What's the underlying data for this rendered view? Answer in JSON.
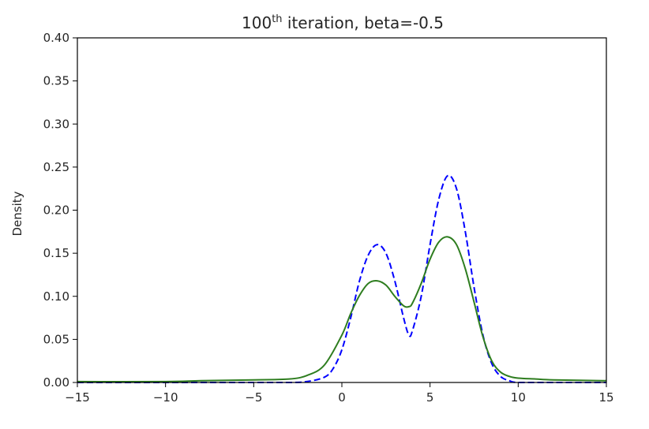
{
  "chart_data": {
    "type": "line",
    "title_main": "100",
    "title_sup": "th",
    "title_rest": " iteration, beta=-0.5",
    "xlabel": "",
    "ylabel": "Density",
    "xlim": [
      -15,
      15
    ],
    "ylim": [
      0,
      0.4
    ],
    "x_ticks": [
      -15,
      -10,
      -5,
      0,
      5,
      10,
      15
    ],
    "x_tick_labels": [
      "−15",
      "−10",
      "−5",
      "0",
      "5",
      "10",
      "15"
    ],
    "y_ticks": [
      0,
      0.05,
      0.1,
      0.15,
      0.2,
      0.25,
      0.3,
      0.35,
      0.4
    ],
    "y_tick_labels": [
      "0.00",
      "0.05",
      "0.10",
      "0.15",
      "0.20",
      "0.25",
      "0.30",
      "0.35",
      "0.40"
    ],
    "grid": false,
    "series": [
      {
        "style": "dashed",
        "color": "#0000ff",
        "x": [
          -15,
          -10,
          -5,
          -3,
          -2,
          -1,
          -0.5,
          0,
          0.5,
          1,
          1.5,
          2,
          2.5,
          3,
          3.5,
          3.8,
          4,
          4.5,
          5,
          5.5,
          6,
          6.5,
          7,
          7.5,
          8,
          8.5,
          9,
          9.5,
          10,
          12,
          15
        ],
        "y": [
          0.0,
          0.0,
          0.0,
          0.0,
          0.001,
          0.006,
          0.016,
          0.038,
          0.075,
          0.118,
          0.148,
          0.16,
          0.15,
          0.118,
          0.075,
          0.055,
          0.06,
          0.1,
          0.16,
          0.213,
          0.24,
          0.225,
          0.175,
          0.11,
          0.055,
          0.022,
          0.007,
          0.002,
          0.0,
          0.0,
          0.0
        ]
      },
      {
        "style": "solid",
        "color": "#2e7d1f",
        "x": [
          -15,
          -10,
          -8,
          -5,
          -3,
          -2,
          -1,
          0,
          0.5,
          1,
          1.5,
          2,
          2.5,
          3,
          3.5,
          3.8,
          4,
          4.5,
          5,
          5.5,
          6,
          6.5,
          7,
          7.5,
          8,
          8.5,
          9,
          9.5,
          10,
          11,
          12,
          15
        ],
        "y": [
          0.001,
          0.001,
          0.002,
          0.003,
          0.004,
          0.008,
          0.02,
          0.055,
          0.08,
          0.101,
          0.115,
          0.118,
          0.113,
          0.1,
          0.089,
          0.088,
          0.092,
          0.115,
          0.143,
          0.163,
          0.169,
          0.16,
          0.132,
          0.093,
          0.053,
          0.025,
          0.012,
          0.007,
          0.005,
          0.004,
          0.003,
          0.002
        ]
      }
    ]
  }
}
